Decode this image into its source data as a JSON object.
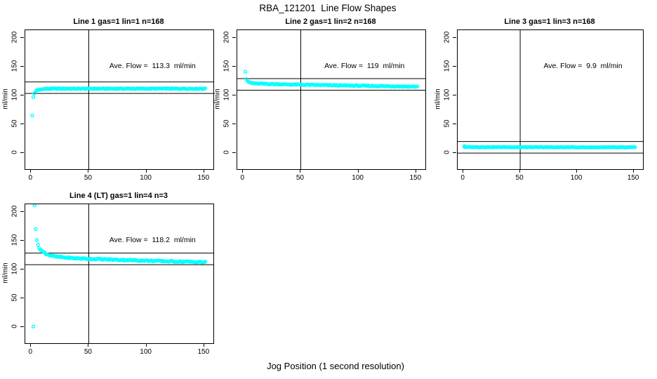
{
  "figure": {
    "title": "RBA_121201  Line Flow Shapes",
    "xlabel": "Jog Position (1 second resolution)",
    "point_color": "#00FFFF",
    "line_color": "#000000",
    "background": "#FFFFFF"
  },
  "chart_data": [
    {
      "type": "scatter",
      "title": "Line 1 gas=1 lin=1 n=168",
      "ylabel": "ml/min",
      "annotation": "Ave. Flow =  113.3  ml/min",
      "ave_flow_ml_min": 113.3,
      "x_ticks": [
        0,
        50,
        100,
        150
      ],
      "y_ticks": [
        0,
        50,
        100,
        150,
        200
      ],
      "xlim": [
        -5,
        158
      ],
      "ylim": [
        -28,
        213
      ],
      "vline_x": 50,
      "hlines": [
        123.3,
        103.3
      ],
      "row": 0,
      "col": 0,
      "transient_points": [
        [
          1,
          65
        ],
        [
          2,
          97
        ],
        [
          3,
          103.5
        ],
        [
          4,
          107
        ]
      ],
      "band": [
        [
          5,
          108.5
        ],
        [
          10,
          111
        ],
        [
          20,
          111.5
        ],
        [
          151,
          111.5
        ]
      ],
      "jitter": 0.7
    },
    {
      "type": "scatter",
      "title": "Line 2 gas=1 lin=2 n=168",
      "ylabel": "ml/min",
      "annotation": "Ave. Flow =  119  ml/min",
      "ave_flow_ml_min": 119,
      "x_ticks": [
        0,
        50,
        100,
        150
      ],
      "y_ticks": [
        0,
        50,
        100,
        150,
        200
      ],
      "xlim": [
        -5,
        158
      ],
      "ylim": [
        -28,
        213
      ],
      "vline_x": 50,
      "hlines": [
        129,
        109
      ],
      "row": 0,
      "col": 1,
      "transient_points": [
        [
          2,
          141
        ],
        [
          3,
          128
        ]
      ],
      "band": [
        [
          4,
          124
        ],
        [
          7,
          121.5
        ],
        [
          12,
          120.3
        ],
        [
          40,
          118.8
        ],
        [
          90,
          117
        ],
        [
          151,
          115
        ]
      ],
      "jitter": 0.8
    },
    {
      "type": "scatter",
      "title": "Line 3 gas=1 lin=3 n=168",
      "ylabel": "ml/min",
      "annotation": "Ave. Flow =  9.9  ml/min",
      "ave_flow_ml_min": 9.9,
      "x_ticks": [
        0,
        50,
        100,
        150
      ],
      "y_ticks": [
        0,
        50,
        100,
        150,
        200
      ],
      "xlim": [
        -5,
        158
      ],
      "ylim": [
        -28,
        213
      ],
      "vline_x": 50,
      "hlines": [
        19.9,
        -0.1
      ],
      "row": 0,
      "col": 2,
      "transient_points": [
        [
          1,
          12
        ]
      ],
      "band": [
        [
          1,
          10.3
        ],
        [
          151,
          9.8
        ]
      ],
      "jitter": 0.45
    },
    {
      "type": "scatter",
      "title": "Line 4 (LT) gas=1 lin=4 n=3",
      "ylabel": "ml/min",
      "annotation": "Ave. Flow =  118.2  ml/min",
      "ave_flow_ml_min": 118.2,
      "x_ticks": [
        0,
        50,
        100,
        150
      ],
      "y_ticks": [
        0,
        50,
        100,
        150,
        200
      ],
      "xlim": [
        -5,
        158
      ],
      "ylim": [
        -28,
        213
      ],
      "vline_x": 50,
      "hlines": [
        128.2,
        108.2
      ],
      "row": 1,
      "col": 0,
      "transient_points": [
        [
          2,
          1
        ],
        [
          3,
          211
        ],
        [
          4,
          170
        ],
        [
          5,
          151
        ],
        [
          6,
          143
        ]
      ],
      "band": [
        [
          7,
          137
        ],
        [
          10,
          131
        ],
        [
          14,
          126
        ],
        [
          20,
          122.5
        ],
        [
          35,
          119.5
        ],
        [
          70,
          117
        ],
        [
          110,
          114.5
        ],
        [
          151,
          112.5
        ]
      ],
      "jitter": 1.1
    }
  ]
}
